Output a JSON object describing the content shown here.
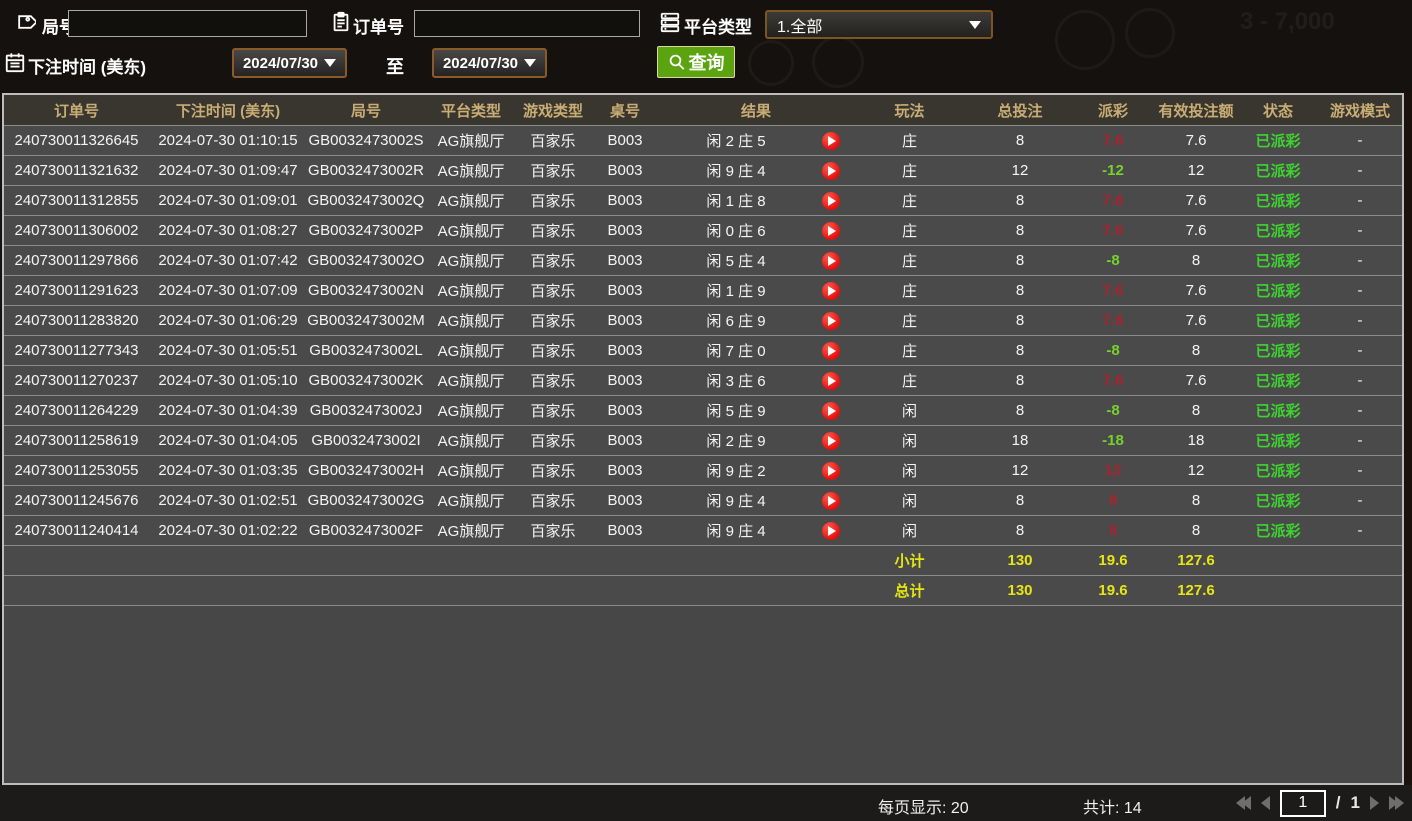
{
  "filters": {
    "round_label": "局号",
    "order_label": "订单号",
    "platform_label": "平台类型",
    "platform_value": "1.全部",
    "bet_time_label": "下注时间 (美东)",
    "date_from": "2024/07/30",
    "date_to": "2024/07/30",
    "to_label": "至",
    "query_label": "查询"
  },
  "background": {
    "faint_text": "3 - 7,000"
  },
  "table": {
    "headers": [
      "订单号",
      "下注时间 (美东)",
      "局号",
      "平台类型",
      "游戏类型",
      "桌号",
      "结果",
      "玩法",
      "总投注",
      "派彩",
      "有效投注额",
      "状态",
      "游戏模式"
    ],
    "rows": [
      {
        "order_no": "240730011326645",
        "bet_time": "2024-07-30 01:10:15",
        "round_no": "GB0032473002S",
        "platform": "AG旗舰厅",
        "game_type": "百家乐",
        "table_no": "B003",
        "result": "闲 2 庄 5",
        "play": "庄",
        "total_bet": "8",
        "payout": "7.6",
        "valid_bet": "7.6",
        "status": "已派彩",
        "game_mode": "-"
      },
      {
        "order_no": "240730011321632",
        "bet_time": "2024-07-30 01:09:47",
        "round_no": "GB0032473002R",
        "platform": "AG旗舰厅",
        "game_type": "百家乐",
        "table_no": "B003",
        "result": "闲 9 庄 4",
        "play": "庄",
        "total_bet": "12",
        "payout": "-12",
        "valid_bet": "12",
        "status": "已派彩",
        "game_mode": "-"
      },
      {
        "order_no": "240730011312855",
        "bet_time": "2024-07-30 01:09:01",
        "round_no": "GB0032473002Q",
        "platform": "AG旗舰厅",
        "game_type": "百家乐",
        "table_no": "B003",
        "result": "闲 1 庄 8",
        "play": "庄",
        "total_bet": "8",
        "payout": "7.6",
        "valid_bet": "7.6",
        "status": "已派彩",
        "game_mode": "-"
      },
      {
        "order_no": "240730011306002",
        "bet_time": "2024-07-30 01:08:27",
        "round_no": "GB0032473002P",
        "platform": "AG旗舰厅",
        "game_type": "百家乐",
        "table_no": "B003",
        "result": "闲 0 庄 6",
        "play": "庄",
        "total_bet": "8",
        "payout": "7.6",
        "valid_bet": "7.6",
        "status": "已派彩",
        "game_mode": "-"
      },
      {
        "order_no": "240730011297866",
        "bet_time": "2024-07-30 01:07:42",
        "round_no": "GB0032473002O",
        "platform": "AG旗舰厅",
        "game_type": "百家乐",
        "table_no": "B003",
        "result": "闲 5 庄 4",
        "play": "庄",
        "total_bet": "8",
        "payout": "-8",
        "valid_bet": "8",
        "status": "已派彩",
        "game_mode": "-"
      },
      {
        "order_no": "240730011291623",
        "bet_time": "2024-07-30 01:07:09",
        "round_no": "GB0032473002N",
        "platform": "AG旗舰厅",
        "game_type": "百家乐",
        "table_no": "B003",
        "result": "闲 1 庄 9",
        "play": "庄",
        "total_bet": "8",
        "payout": "7.6",
        "valid_bet": "7.6",
        "status": "已派彩",
        "game_mode": "-"
      },
      {
        "order_no": "240730011283820",
        "bet_time": "2024-07-30 01:06:29",
        "round_no": "GB0032473002M",
        "platform": "AG旗舰厅",
        "game_type": "百家乐",
        "table_no": "B003",
        "result": "闲 6 庄 9",
        "play": "庄",
        "total_bet": "8",
        "payout": "7.6",
        "valid_bet": "7.6",
        "status": "已派彩",
        "game_mode": "-"
      },
      {
        "order_no": "240730011277343",
        "bet_time": "2024-07-30 01:05:51",
        "round_no": "GB0032473002L",
        "platform": "AG旗舰厅",
        "game_type": "百家乐",
        "table_no": "B003",
        "result": "闲 7 庄 0",
        "play": "庄",
        "total_bet": "8",
        "payout": "-8",
        "valid_bet": "8",
        "status": "已派彩",
        "game_mode": "-"
      },
      {
        "order_no": "240730011270237",
        "bet_time": "2024-07-30 01:05:10",
        "round_no": "GB0032473002K",
        "platform": "AG旗舰厅",
        "game_type": "百家乐",
        "table_no": "B003",
        "result": "闲 3 庄 6",
        "play": "庄",
        "total_bet": "8",
        "payout": "7.6",
        "valid_bet": "7.6",
        "status": "已派彩",
        "game_mode": "-"
      },
      {
        "order_no": "240730011264229",
        "bet_time": "2024-07-30 01:04:39",
        "round_no": "GB0032473002J",
        "platform": "AG旗舰厅",
        "game_type": "百家乐",
        "table_no": "B003",
        "result": "闲 5 庄 9",
        "play": "闲",
        "total_bet": "8",
        "payout": "-8",
        "valid_bet": "8",
        "status": "已派彩",
        "game_mode": "-"
      },
      {
        "order_no": "240730011258619",
        "bet_time": "2024-07-30 01:04:05",
        "round_no": "GB0032473002I",
        "platform": "AG旗舰厅",
        "game_type": "百家乐",
        "table_no": "B003",
        "result": "闲 2 庄 9",
        "play": "闲",
        "total_bet": "18",
        "payout": "-18",
        "valid_bet": "18",
        "status": "已派彩",
        "game_mode": "-"
      },
      {
        "order_no": "240730011253055",
        "bet_time": "2024-07-30 01:03:35",
        "round_no": "GB0032473002H",
        "platform": "AG旗舰厅",
        "game_type": "百家乐",
        "table_no": "B003",
        "result": "闲 9 庄 2",
        "play": "闲",
        "total_bet": "12",
        "payout": "12",
        "valid_bet": "12",
        "status": "已派彩",
        "game_mode": "-"
      },
      {
        "order_no": "240730011245676",
        "bet_time": "2024-07-30 01:02:51",
        "round_no": "GB0032473002G",
        "platform": "AG旗舰厅",
        "game_type": "百家乐",
        "table_no": "B003",
        "result": "闲 9 庄 4",
        "play": "闲",
        "total_bet": "8",
        "payout": "8",
        "valid_bet": "8",
        "status": "已派彩",
        "game_mode": "-"
      },
      {
        "order_no": "240730011240414",
        "bet_time": "2024-07-30 01:02:22",
        "round_no": "GB0032473002F",
        "platform": "AG旗舰厅",
        "game_type": "百家乐",
        "table_no": "B003",
        "result": "闲 9 庄 4",
        "play": "闲",
        "total_bet": "8",
        "payout": "8",
        "valid_bet": "8",
        "status": "已派彩",
        "game_mode": "-"
      }
    ],
    "subtotal": {
      "label": "小计",
      "total_bet": "130",
      "payout": "19.6",
      "valid_bet": "127.6"
    },
    "total": {
      "label": "总计",
      "total_bet": "130",
      "payout": "19.6",
      "valid_bet": "127.6"
    }
  },
  "footer": {
    "per_page_label": "每页显示: 20",
    "total_count_label": "共计: 14",
    "page_current": "1",
    "page_sep": "/",
    "page_total": "1"
  },
  "colors": {
    "header_text": "#c9ad74",
    "payout_positive": "#a8242c",
    "payout_negative": "#76d22c",
    "status_green": "#3ed430",
    "totals_yellow": "#e6e612",
    "query_green": "#5ba30f",
    "date_border_brown": "#8a5b28"
  }
}
